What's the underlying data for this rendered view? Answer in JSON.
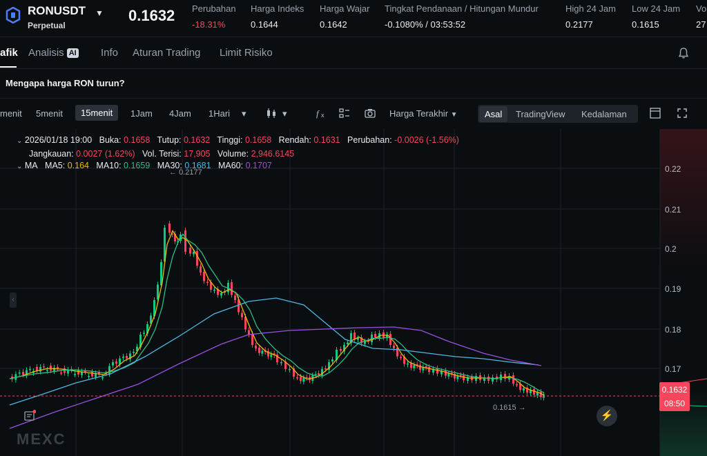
{
  "ticker": {
    "symbol": "RONUSDT",
    "contract_type": "Perpetual",
    "last_price": "0.1632",
    "stats": [
      {
        "label": "Perubahan",
        "value": "-18.31%",
        "negative": true
      },
      {
        "label": "Harga Indeks",
        "value": "0.1644",
        "negative": false
      },
      {
        "label": "Harga Wajar",
        "value": "0.1642",
        "negative": false
      },
      {
        "label": "Tingkat Pendanaan / Hitungan Mundur",
        "value": "-0.1080%  /  03:53:52",
        "negative": false
      },
      {
        "label": "High 24 Jam",
        "value": "0.2177",
        "negative": false
      },
      {
        "label": "Low 24 Jam",
        "value": "0.1615",
        "negative": false
      },
      {
        "label": "Vo",
        "value": "27",
        "negative": false
      }
    ]
  },
  "tabs": [
    {
      "label": "afik",
      "active": true
    },
    {
      "label": "Analisis",
      "badge": "AI",
      "active": false
    },
    {
      "label": "Info",
      "active": false
    },
    {
      "label": "Aturan Trading",
      "active": false
    },
    {
      "label": "Limit Risiko",
      "active": false
    }
  ],
  "banner": {
    "text": "Mengapa harga RON turun?"
  },
  "toolbar": {
    "timeframes": [
      "menit",
      "5menit",
      "15menit",
      "1Jam",
      "4Jam",
      "1Hari"
    ],
    "active_timeframe": "15menit",
    "price_source": "Harga Terakhir",
    "views": [
      "Asal",
      "TradingView",
      "Kedalaman"
    ],
    "active_view": "Asal"
  },
  "ohlc": {
    "date": "2026/01/18 19:00",
    "open_label": "Buka:",
    "open": "0.1658",
    "close_label": "Tutup:",
    "close": "0.1632",
    "high_label": "Tinggi:",
    "high": "0.1658",
    "low_label": "Rendah:",
    "low": "0.1631",
    "change_label": "Perubahan:",
    "change": "-0.0026 (-1.56%)",
    "range_label": "Jangkauan:",
    "range": "0.0027 (1.62%)",
    "vol_label": "Vol. Terisi:",
    "vol": "17,905",
    "volume_label": "Volume:",
    "volume": "2,946.6145"
  },
  "ma": {
    "label": "MA",
    "ma5_label": "MA5:",
    "ma5": "0.164",
    "ma10_label": "MA10:",
    "ma10": "0.1659",
    "ma30_label": "MA30:",
    "ma30": "0.1681",
    "ma60_label": "MA60:",
    "ma60": "0.1707"
  },
  "axis": {
    "ticks": [
      "0.22",
      "0.21",
      "0.2",
      "0.19",
      "0.18",
      "0.17"
    ],
    "current_price": "0.1632",
    "countdown": "08:50"
  },
  "markers": {
    "high": "0.2177",
    "low": "0.1615"
  },
  "watermark": "MEXC",
  "colors": {
    "up": "#0ecb81",
    "down": "#f6465d",
    "ma5": "#f0b90b",
    "ma10": "#2ebd85",
    "ma30": "#4fb8e3",
    "ma60": "#9b51e0"
  },
  "chart_data": {
    "type": "candlestick",
    "y_range": [
      0.1615,
      0.2177
    ],
    "ma": [
      "MA5",
      "MA10",
      "MA30",
      "MA60"
    ]
  }
}
